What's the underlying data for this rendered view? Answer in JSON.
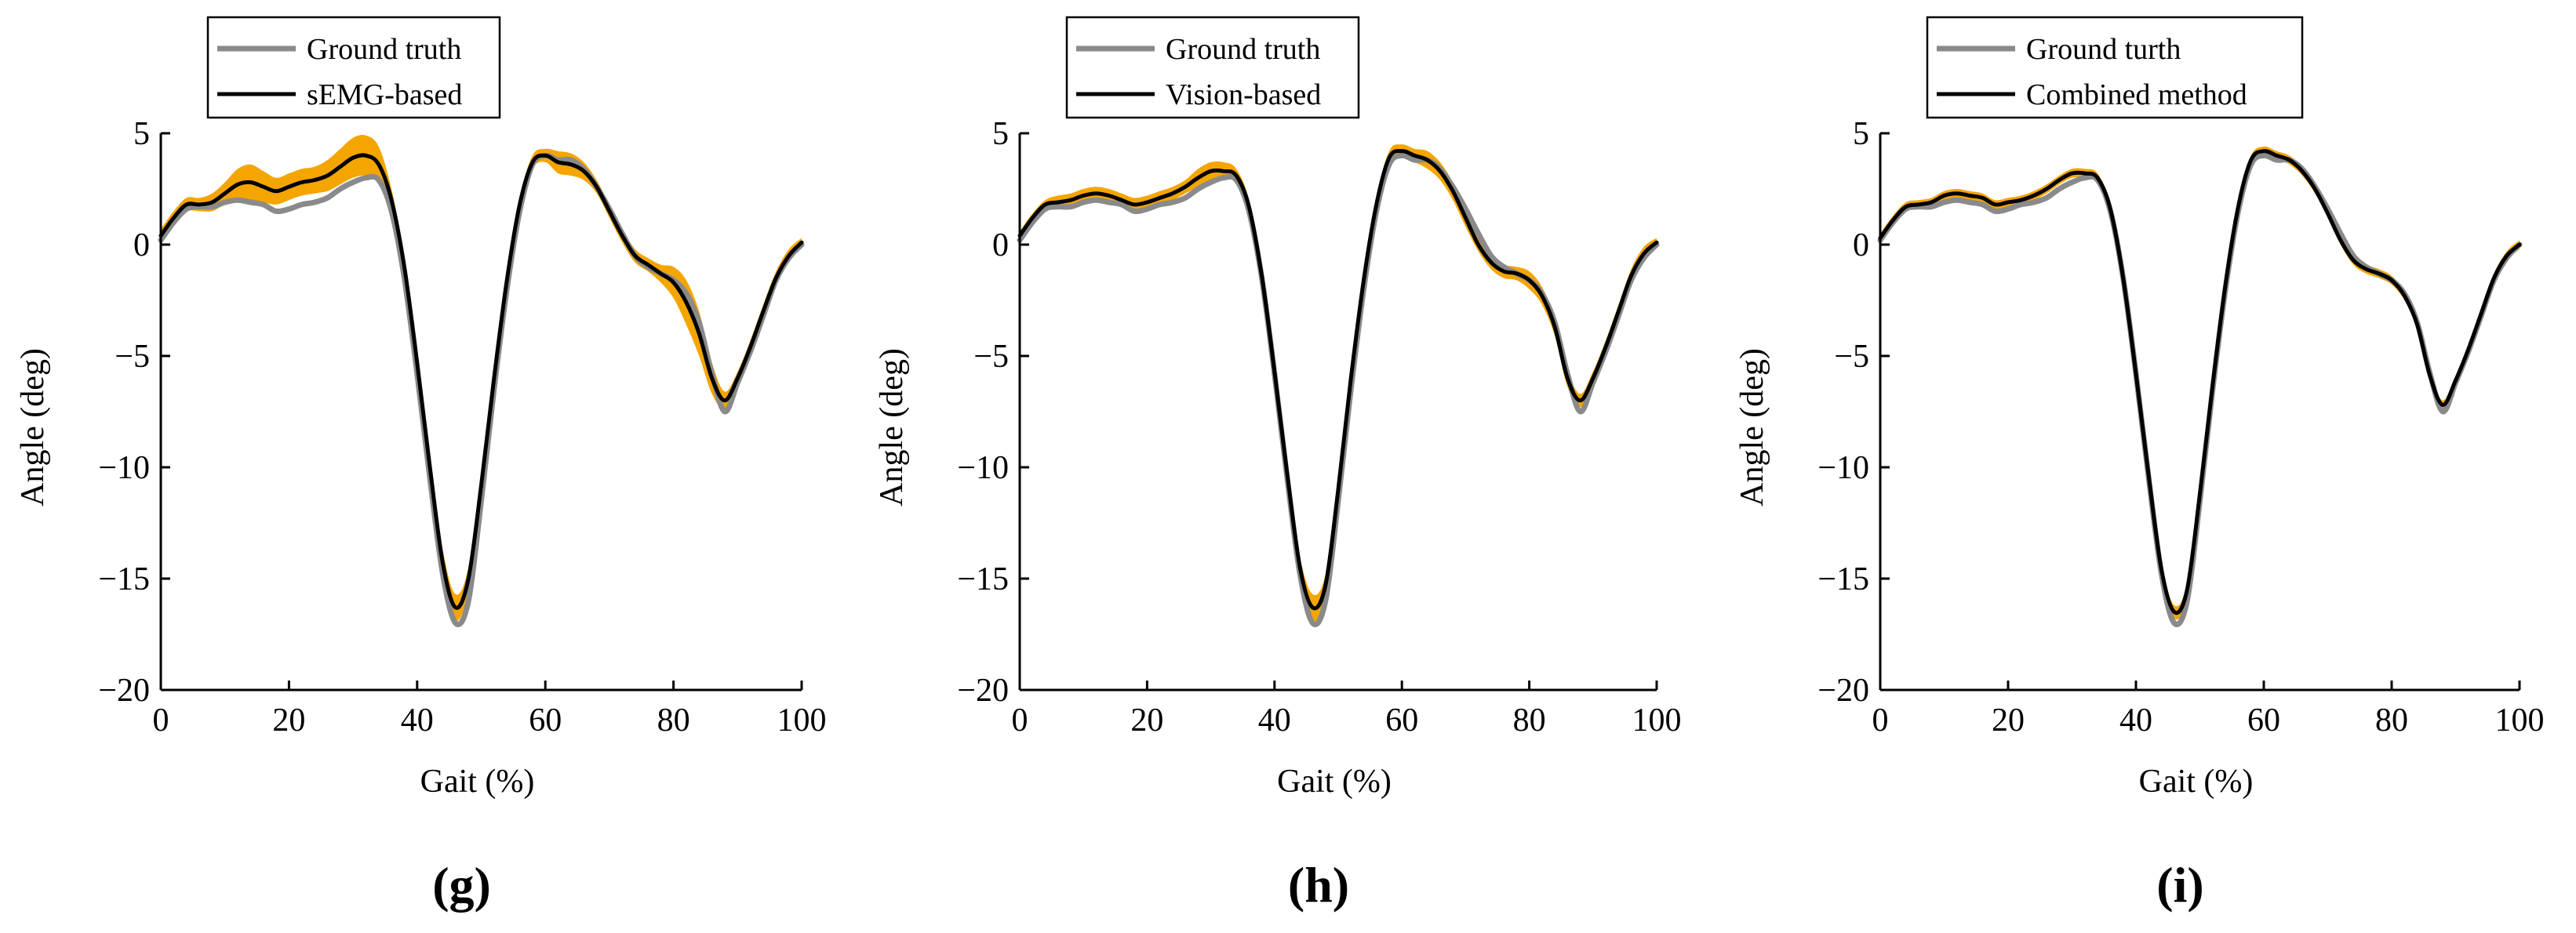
{
  "chart_data": [
    {
      "type": "line",
      "panel_label": "(g)",
      "xlabel": "Gait (%)",
      "ylabel": "Angle (deg)",
      "xlim": [
        0,
        100
      ],
      "ylim": [
        -20,
        5
      ],
      "xticks": [
        0,
        20,
        40,
        60,
        80,
        100
      ],
      "yticks": [
        5,
        0,
        -5,
        -10,
        -15,
        -20
      ],
      "legend_position": "top-left",
      "x": [
        0,
        2,
        4,
        6,
        8,
        10,
        12,
        14,
        16,
        18,
        20,
        22,
        24,
        26,
        28,
        30,
        32,
        34,
        36,
        38,
        40,
        42,
        44,
        46,
        48,
        50,
        52,
        54,
        56,
        58,
        60,
        62,
        64,
        66,
        68,
        70,
        72,
        74,
        76,
        78,
        80,
        82,
        84,
        86,
        88,
        90,
        92,
        94,
        96,
        98,
        100
      ],
      "series": [
        {
          "name": "Ground truth",
          "color": "#8a8a8a",
          "values": [
            0.2,
            1.0,
            1.6,
            1.7,
            1.7,
            1.9,
            2.0,
            1.9,
            1.8,
            1.5,
            1.6,
            1.8,
            1.9,
            2.1,
            2.5,
            2.8,
            3.0,
            2.9,
            1.5,
            -1.5,
            -5.8,
            -10.5,
            -14.8,
            -17.0,
            -16.0,
            -11.5,
            -6.5,
            -2.0,
            1.5,
            3.6,
            4.0,
            3.8,
            3.8,
            3.4,
            2.6,
            1.6,
            0.5,
            -0.5,
            -1.0,
            -1.3,
            -1.6,
            -2.2,
            -3.5,
            -5.8,
            -7.5,
            -6.2,
            -4.8,
            -3.2,
            -1.6,
            -0.6,
            0.0
          ]
        },
        {
          "name": "sEMG-based",
          "color": "#000000",
          "values": [
            0.4,
            1.2,
            1.8,
            1.8,
            1.9,
            2.3,
            2.7,
            2.8,
            2.6,
            2.4,
            2.6,
            2.8,
            2.9,
            3.1,
            3.5,
            3.9,
            4.0,
            3.6,
            2.0,
            -1.0,
            -5.3,
            -10.0,
            -14.3,
            -16.3,
            -15.0,
            -10.8,
            -6.0,
            -1.6,
            1.8,
            3.7,
            4.0,
            3.7,
            3.6,
            3.3,
            2.6,
            1.5,
            0.4,
            -0.5,
            -0.9,
            -1.3,
            -1.7,
            -2.6,
            -4.0,
            -6.0,
            -7.0,
            -6.0,
            -4.6,
            -3.0,
            -1.5,
            -0.5,
            0.1
          ]
        }
      ],
      "shaded_band": {
        "color": "#f5a500",
        "description": "variation band around sEMG-based estimate"
      }
    },
    {
      "type": "line",
      "panel_label": "(h)",
      "xlabel": "Gait (%)",
      "ylabel": "Angle (deg)",
      "xlim": [
        0,
        100
      ],
      "ylim": [
        -20,
        5
      ],
      "xticks": [
        0,
        20,
        40,
        60,
        80,
        100
      ],
      "yticks": [
        5,
        0,
        -5,
        -10,
        -15,
        -20
      ],
      "legend_position": "top-left",
      "x": [
        0,
        2,
        4,
        6,
        8,
        10,
        12,
        14,
        16,
        18,
        20,
        22,
        24,
        26,
        28,
        30,
        32,
        34,
        36,
        38,
        40,
        42,
        44,
        46,
        48,
        50,
        52,
        54,
        56,
        58,
        60,
        62,
        64,
        66,
        68,
        70,
        72,
        74,
        76,
        78,
        80,
        82,
        84,
        86,
        88,
        90,
        92,
        94,
        96,
        98,
        100
      ],
      "series": [
        {
          "name": "Ground truth",
          "color": "#8a8a8a",
          "values": [
            0.2,
            1.0,
            1.6,
            1.7,
            1.7,
            1.9,
            2.0,
            1.9,
            1.8,
            1.5,
            1.6,
            1.8,
            1.9,
            2.1,
            2.5,
            2.8,
            3.0,
            2.9,
            1.5,
            -1.5,
            -5.8,
            -10.5,
            -14.8,
            -17.0,
            -16.0,
            -11.5,
            -6.5,
            -2.0,
            1.5,
            3.6,
            4.0,
            3.8,
            3.8,
            3.4,
            2.6,
            1.6,
            0.5,
            -0.5,
            -1.0,
            -1.3,
            -1.6,
            -2.2,
            -3.5,
            -5.8,
            -7.5,
            -6.2,
            -4.8,
            -3.2,
            -1.6,
            -0.6,
            0.0
          ]
        },
        {
          "name": "Vision-based",
          "color": "#000000",
          "values": [
            0.4,
            1.2,
            1.8,
            1.9,
            2.0,
            2.2,
            2.3,
            2.2,
            2.0,
            1.8,
            1.9,
            2.1,
            2.3,
            2.6,
            3.0,
            3.3,
            3.3,
            3.1,
            1.7,
            -1.4,
            -5.7,
            -10.3,
            -14.5,
            -16.3,
            -15.3,
            -11.0,
            -6.0,
            -1.6,
            1.8,
            3.9,
            4.2,
            4.0,
            3.8,
            3.3,
            2.4,
            1.2,
            0.0,
            -0.8,
            -1.2,
            -1.3,
            -1.6,
            -2.3,
            -3.7,
            -6.0,
            -7.0,
            -6.0,
            -4.6,
            -3.0,
            -1.4,
            -0.4,
            0.1
          ]
        }
      ],
      "shaded_band": {
        "color": "#f5a500",
        "description": "variation band around vision-based estimate"
      }
    },
    {
      "type": "line",
      "panel_label": "(i)",
      "xlabel": "Gait (%)",
      "ylabel": "Angle (deg)",
      "xlim": [
        0,
        100
      ],
      "ylim": [
        -20,
        5
      ],
      "xticks": [
        0,
        20,
        40,
        60,
        80,
        100
      ],
      "yticks": [
        5,
        0,
        -5,
        -10,
        -15,
        -20
      ],
      "legend_position": "top-left",
      "x": [
        0,
        2,
        4,
        6,
        8,
        10,
        12,
        14,
        16,
        18,
        20,
        22,
        24,
        26,
        28,
        30,
        32,
        34,
        36,
        38,
        40,
        42,
        44,
        46,
        48,
        50,
        52,
        54,
        56,
        58,
        60,
        62,
        64,
        66,
        68,
        70,
        72,
        74,
        76,
        78,
        80,
        82,
        84,
        86,
        88,
        90,
        92,
        94,
        96,
        98,
        100
      ],
      "series": [
        {
          "name": "Ground turth",
          "color": "#8a8a8a",
          "values": [
            0.2,
            1.0,
            1.6,
            1.7,
            1.7,
            1.9,
            2.0,
            1.9,
            1.8,
            1.5,
            1.6,
            1.8,
            1.9,
            2.1,
            2.5,
            2.8,
            3.0,
            2.9,
            1.5,
            -1.5,
            -5.8,
            -10.5,
            -14.8,
            -17.0,
            -16.0,
            -11.5,
            -6.5,
            -2.0,
            1.5,
            3.6,
            4.0,
            3.8,
            3.8,
            3.4,
            2.6,
            1.6,
            0.5,
            -0.5,
            -1.0,
            -1.3,
            -1.6,
            -2.2,
            -3.5,
            -5.8,
            -7.5,
            -6.2,
            -4.8,
            -3.2,
            -1.6,
            -0.6,
            0.0
          ]
        },
        {
          "name": "Combined method",
          "color": "#000000",
          "values": [
            0.3,
            1.1,
            1.7,
            1.8,
            1.9,
            2.2,
            2.3,
            2.2,
            2.1,
            1.8,
            1.9,
            2.0,
            2.2,
            2.5,
            2.9,
            3.2,
            3.2,
            3.0,
            1.6,
            -1.5,
            -5.8,
            -10.4,
            -14.6,
            -16.5,
            -15.5,
            -11.2,
            -6.3,
            -1.8,
            1.7,
            3.8,
            4.2,
            4.0,
            3.8,
            3.3,
            2.5,
            1.4,
            0.2,
            -0.7,
            -1.1,
            -1.3,
            -1.6,
            -2.3,
            -3.6,
            -5.9,
            -7.2,
            -6.1,
            -4.7,
            -3.1,
            -1.5,
            -0.5,
            0.0
          ]
        }
      ],
      "shaded_band": {
        "color": "#f5a500",
        "description": "variation band around combined-method estimate"
      }
    }
  ]
}
